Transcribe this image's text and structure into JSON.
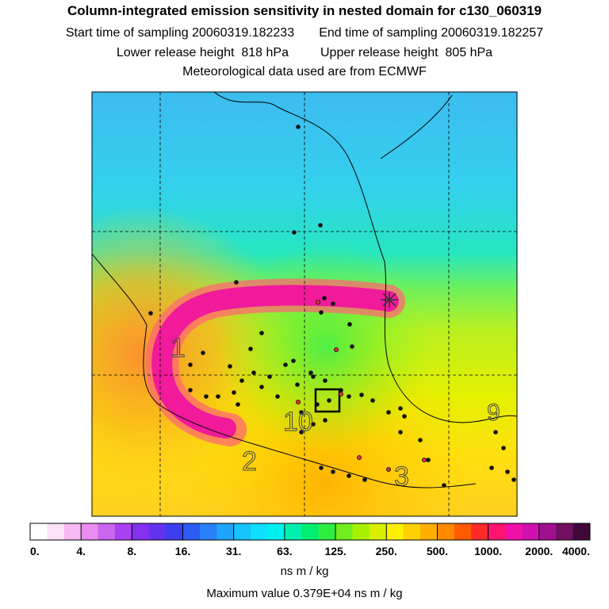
{
  "header": {
    "title": "Column-integrated emission sensitivity in nested domain for c130_060319",
    "start_label": "Start time of sampling",
    "start_value": "20060319.182233",
    "end_label": "End time of sampling",
    "end_value": "20060319.182257",
    "lower_label": "Lower release height",
    "lower_value": "818 hPa",
    "upper_label": "Upper release height",
    "upper_value": "805 hPa",
    "met_line": "Meteorological data used are from ECMWF"
  },
  "map": {
    "trajectory_labels": [
      "1",
      "2",
      "3",
      "9",
      "10"
    ],
    "colors": {
      "background_north": "#3fc6f0",
      "plume_core": "#f01aa0",
      "plume_edge": "#ff7070",
      "south_fill": "#ffd820",
      "coast": "#000000"
    }
  },
  "colorbar": {
    "colors": [
      "#ffffff",
      "#fde2f8",
      "#f6b9f3",
      "#e98ef0",
      "#c965ef",
      "#a940f1",
      "#8630f0",
      "#6332ee",
      "#3b3eef",
      "#2c5cf3",
      "#2a80f7",
      "#1fa4fb",
      "#15c5fb",
      "#0fe0ff",
      "#00f0f0",
      "#00f0b0",
      "#00ee70",
      "#30ee40",
      "#70ee20",
      "#a8f000",
      "#d8f000",
      "#fff000",
      "#ffd000",
      "#ffae00",
      "#ff8a00",
      "#ff5a00",
      "#ff2a2a",
      "#ff1470",
      "#f010a8",
      "#d010b0",
      "#a01090",
      "#701060",
      "#400838"
    ],
    "tick_labels": [
      "0.",
      "4.",
      "8.",
      "16.",
      "31.",
      "63.",
      "125.",
      "250.",
      "500.",
      "1000.",
      "2000.",
      "4000."
    ],
    "units": "ns m / kg",
    "max_label": "Maximum value",
    "max_value": "0.379E+04 ns m / kg"
  }
}
